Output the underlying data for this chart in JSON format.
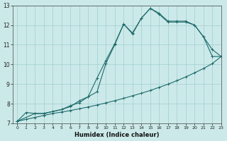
{
  "xlabel": "Humidex (Indice chaleur)",
  "xlim": [
    -0.5,
    23
  ],
  "ylim": [
    7,
    13
  ],
  "xticks": [
    0,
    1,
    2,
    3,
    4,
    5,
    6,
    7,
    8,
    9,
    10,
    11,
    12,
    13,
    14,
    15,
    16,
    17,
    18,
    19,
    20,
    21,
    22,
    23
  ],
  "yticks": [
    7,
    8,
    9,
    10,
    11,
    12,
    13
  ],
  "bg_color": "#cce9e9",
  "grid_color": "#9fcece",
  "line_color": "#1e6b6b",
  "line1_x": [
    0,
    1,
    2,
    3,
    4,
    5,
    6,
    7,
    8,
    9,
    10,
    11,
    12,
    13,
    14,
    15,
    16,
    17,
    18,
    19,
    20,
    21,
    22,
    23
  ],
  "line1_y": [
    7.1,
    7.55,
    7.5,
    7.5,
    7.6,
    7.7,
    7.9,
    8.05,
    8.35,
    8.6,
    10.05,
    11.0,
    12.05,
    11.6,
    12.35,
    12.85,
    12.55,
    12.15,
    12.15,
    12.15,
    12.0,
    11.4,
    10.4,
    10.4
  ],
  "line2_x": [
    0,
    2,
    3,
    4,
    5,
    6,
    7,
    8,
    9,
    10,
    11,
    12,
    13,
    14,
    15,
    16,
    17,
    18,
    19,
    20,
    21,
    22,
    23
  ],
  "line2_y": [
    7.1,
    7.5,
    7.5,
    7.6,
    7.7,
    7.85,
    8.15,
    8.35,
    9.3,
    10.2,
    11.05,
    12.05,
    11.55,
    12.35,
    12.85,
    12.6,
    12.2,
    12.2,
    12.2,
    12.0,
    11.4,
    10.75,
    10.4
  ],
  "line3_x": [
    0,
    1,
    2,
    3,
    4,
    5,
    6,
    7,
    8,
    9,
    10,
    11,
    12,
    13,
    14,
    15,
    16,
    17,
    18,
    19,
    20,
    21,
    22,
    23
  ],
  "line3_y": [
    7.1,
    7.2,
    7.3,
    7.4,
    7.5,
    7.57,
    7.65,
    7.74,
    7.83,
    7.93,
    8.04,
    8.15,
    8.27,
    8.4,
    8.53,
    8.67,
    8.83,
    8.99,
    9.17,
    9.36,
    9.57,
    9.79,
    10.04,
    10.4
  ]
}
